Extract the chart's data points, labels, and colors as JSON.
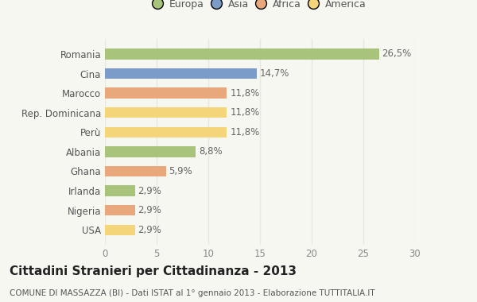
{
  "categories": [
    "Romania",
    "Cina",
    "Marocco",
    "Rep. Dominicana",
    "Perù",
    "Albania",
    "Ghana",
    "Irlanda",
    "Nigeria",
    "USA"
  ],
  "values": [
    26.5,
    14.7,
    11.8,
    11.8,
    11.8,
    8.8,
    5.9,
    2.9,
    2.9,
    2.9
  ],
  "labels": [
    "26,5%",
    "14,7%",
    "11,8%",
    "11,8%",
    "11,8%",
    "8,8%",
    "5,9%",
    "2,9%",
    "2,9%",
    "2,9%"
  ],
  "colors": [
    "#a8c47a",
    "#7b9cc8",
    "#e8a87c",
    "#f5d57a",
    "#f5d57a",
    "#a8c47a",
    "#e8a87c",
    "#a8c47a",
    "#e8a87c",
    "#f5d57a"
  ],
  "legend_labels": [
    "Europa",
    "Asia",
    "Africa",
    "America"
  ],
  "legend_colors": [
    "#a8c47a",
    "#7b9cc8",
    "#e8a87c",
    "#f5d57a"
  ],
  "xlim": [
    0,
    30
  ],
  "xticks": [
    0,
    5,
    10,
    15,
    20,
    25,
    30
  ],
  "title": "Cittadini Stranieri per Cittadinanza - 2013",
  "subtitle": "COMUNE DI MASSAZZA (BI) - Dati ISTAT al 1° gennaio 2013 - Elaborazione TUTTITALIA.IT",
  "background_color": "#f7f7f2",
  "grid_color": "#e8e8e0",
  "bar_height": 0.55,
  "title_fontsize": 11,
  "subtitle_fontsize": 7.5,
  "tick_fontsize": 8.5,
  "label_fontsize": 8.5,
  "legend_fontsize": 9
}
